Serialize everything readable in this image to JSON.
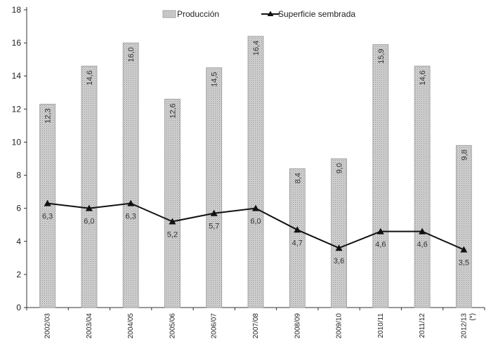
{
  "chart_data": {
    "type": "bar",
    "categories": [
      "2002/03",
      "2003/04",
      "2004/05",
      "2005/06",
      "2006/07",
      "2007/08",
      "2008/09",
      "2009/10",
      "2010/11",
      "2011/12",
      "2012/13"
    ],
    "category_suffix": [
      "",
      "",
      "",
      "",
      "",
      "",
      "",
      "",
      "",
      "",
      "(*)"
    ],
    "series": [
      {
        "name": "Producción",
        "type": "bar",
        "values": [
          12.3,
          14.6,
          16.0,
          12.6,
          14.5,
          16.4,
          8.4,
          9.0,
          15.9,
          14.6,
          9.8
        ],
        "labels": [
          "12,3",
          "14,6",
          "16,0",
          "12,6",
          "14,5",
          "16,4",
          "8,4",
          "9,0",
          "15,9",
          "14,6",
          "9,8"
        ]
      },
      {
        "name": "Superficie sembrada",
        "type": "line",
        "values": [
          6.3,
          6.0,
          6.3,
          5.2,
          5.7,
          6.0,
          4.7,
          3.6,
          4.6,
          4.6,
          3.5
        ],
        "labels": [
          "6,3",
          "6,0",
          "6,3",
          "5,2",
          "5,7",
          "6,0",
          "4,7",
          "3,6",
          "4,6",
          "4,6",
          "3,5"
        ]
      }
    ],
    "ylim": [
      0,
      18
    ],
    "yticks": [
      0,
      2,
      4,
      6,
      8,
      10,
      12,
      14,
      16,
      18
    ],
    "legend": "top-center",
    "grid": false,
    "colors": {
      "bar": "#c8c8c8",
      "bar_edge": "#9a9a9a",
      "line": "#111111",
      "axis": "#333333"
    }
  }
}
